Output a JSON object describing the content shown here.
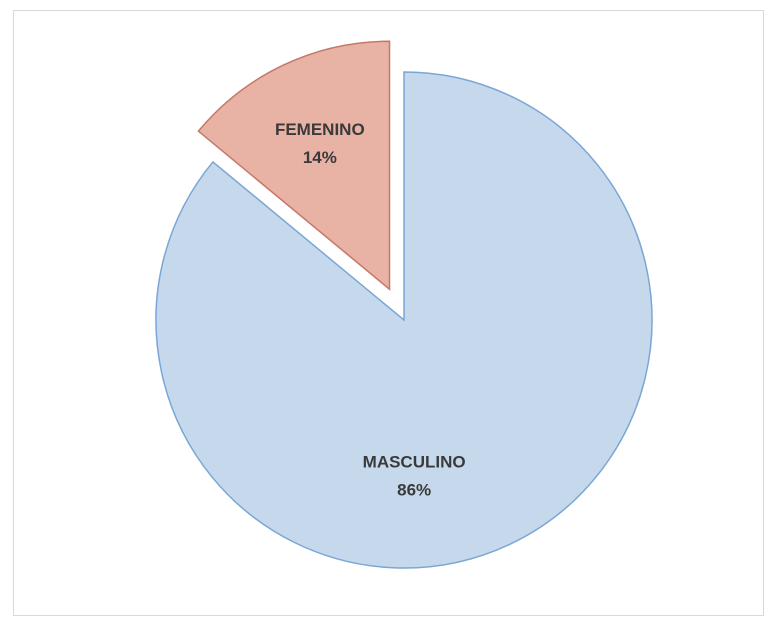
{
  "chart_data": {
    "type": "pie",
    "title": "",
    "slices": [
      {
        "label": "MASCULINO",
        "value": 86,
        "value_label": "86%",
        "color": "#c6d9ec",
        "stroke": "#7aa6d6",
        "exploded": false
      },
      {
        "label": "FEMENINO",
        "value": 14,
        "value_label": "14%",
        "color": "#e8b2a4",
        "stroke": "#c7766a",
        "exploded": true
      }
    ],
    "legend": "none",
    "start_angle": "12 o'clock, clockwise"
  }
}
